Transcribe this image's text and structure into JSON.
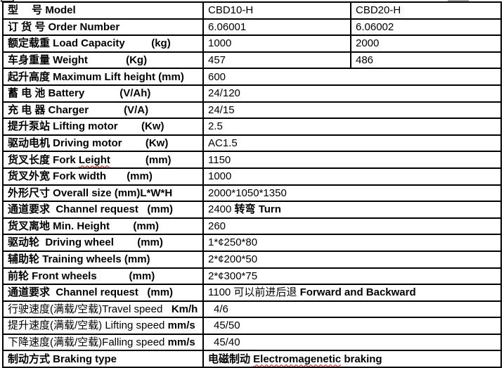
{
  "colors": {
    "border": "#000000",
    "squiggle": "#e60000",
    "artifact_gray": "#a9a9a9",
    "text": "#000000"
  },
  "table": {
    "models": [
      "CBD10-H",
      "CBD20-H"
    ],
    "rows": [
      {
        "name": "model",
        "label": [
          {
            "t": "型　 号 ",
            "b": 1
          },
          {
            "t": "Model",
            "b": 1
          }
        ],
        "cells": [
          [
            {
              "t": "CBD10-H"
            }
          ],
          [
            {
              "t": "CBD20-H"
            }
          ]
        ]
      },
      {
        "name": "order-number",
        "label": [
          {
            "t": "订 货 号 ",
            "b": 1
          },
          {
            "t": "Order Number",
            "b": 1
          }
        ],
        "cells": [
          [
            {
              "t": "6.06001"
            }
          ],
          [
            {
              "t": "6.06002"
            }
          ]
        ]
      },
      {
        "name": "load-capacity",
        "label": [
          {
            "t": "额定载重 ",
            "b": 1
          },
          {
            "t": "Load Capacity",
            "b": 1
          },
          {
            "t": "         ",
            "b": 1
          },
          {
            "t": "(kg)",
            "b": 1
          }
        ],
        "cells": [
          [
            {
              "t": "1000"
            }
          ],
          [
            {
              "t": "2000"
            }
          ]
        ]
      },
      {
        "name": "weight",
        "label": [
          {
            "t": "车身重量 ",
            "b": 1
          },
          {
            "t": "Weight",
            "b": 1
          },
          {
            "t": "             ",
            "b": 1
          },
          {
            "t": "(Kg)",
            "b": 1
          }
        ],
        "cells": [
          [
            {
              "t": "457"
            }
          ],
          [
            {
              "t": "486"
            }
          ]
        ]
      },
      {
        "name": "lift-height",
        "label": [
          {
            "t": "起升高度 ",
            "b": 1
          },
          {
            "t": "Maximum Lift height (mm)",
            "b": 1
          }
        ],
        "cells": [
          [
            {
              "t": "600"
            }
          ]
        ]
      },
      {
        "name": "battery",
        "label": [
          {
            "t": "蓄 电 池 ",
            "b": 1
          },
          {
            "t": "Battery",
            "b": 1
          },
          {
            "t": "            ",
            "b": 1
          },
          {
            "t": "(V/Ah)",
            "b": 1
          }
        ],
        "cells": [
          [
            {
              "t": "24/120"
            }
          ]
        ]
      },
      {
        "name": "charger",
        "label": [
          {
            "t": "充 电 器 ",
            "b": 1
          },
          {
            "t": "Charger",
            "b": 1
          },
          {
            "t": "            ",
            "b": 1
          },
          {
            "t": "(V/A)",
            "b": 1
          }
        ],
        "cells": [
          [
            {
              "t": "24/15"
            }
          ]
        ]
      },
      {
        "name": "lifting-motor",
        "label": [
          {
            "t": "提升泵站 ",
            "b": 1
          },
          {
            "t": "Lifting motor",
            "b": 1
          },
          {
            "t": "        ",
            "b": 1
          },
          {
            "t": "(Kw)",
            "b": 1
          }
        ],
        "cells": [
          [
            {
              "t": "2.5"
            }
          ]
        ]
      },
      {
        "name": "driving-motor",
        "label": [
          {
            "t": "驱动电机 ",
            "b": 1
          },
          {
            "t": "Driving motor",
            "b": 1
          },
          {
            "t": "        ",
            "b": 1
          },
          {
            "t": "(Kw)",
            "b": 1
          }
        ],
        "cells": [
          [
            {
              "t": "AC1.5"
            }
          ]
        ]
      },
      {
        "name": "fork-length",
        "label": [
          {
            "t": "货叉长度 ",
            "b": 1
          },
          {
            "t": "Fork ",
            "b": 1
          },
          {
            "t": "Leight",
            "b": 1,
            "sq": 1
          },
          {
            "t": "            ",
            "b": 1
          },
          {
            "t": "(mm)",
            "b": 1
          }
        ],
        "cells": [
          [
            {
              "t": "1150"
            }
          ]
        ]
      },
      {
        "name": "fork-width",
        "label": [
          {
            "t": "货叉外宽 ",
            "b": 1
          },
          {
            "t": "Fork width",
            "b": 1
          },
          {
            "t": "       ",
            "b": 1
          },
          {
            "t": "(mm)",
            "b": 1
          }
        ],
        "cells": [
          [
            {
              "t": "1000"
            }
          ]
        ]
      },
      {
        "name": "overall-size",
        "label": [
          {
            "t": "外形尺寸 ",
            "b": 1
          },
          {
            "t": "Overall size (mm)L*W*H",
            "b": 1
          }
        ],
        "cells": [
          [
            {
              "t": "2000*1050*1350"
            }
          ]
        ]
      },
      {
        "name": "channel-request-turn",
        "label": [
          {
            "t": "通道要求  ",
            "b": 1
          },
          {
            "t": "Channel request",
            "b": 1
          },
          {
            "t": "   ",
            "b": 1
          },
          {
            "t": "(mm)",
            "b": 1
          }
        ],
        "cells": [
          [
            {
              "t": "2400 "
            },
            {
              "t": "转弯 ",
              "b": 1
            },
            {
              "t": "Turn",
              "b": 1
            }
          ]
        ]
      },
      {
        "name": "min-height",
        "label": [
          {
            "t": "货叉离地 ",
            "b": 1
          },
          {
            "t": "Min. Height",
            "b": 1
          },
          {
            "t": "        ",
            "b": 1
          },
          {
            "t": "(mm)",
            "b": 1
          }
        ],
        "cells": [
          [
            {
              "t": "260"
            }
          ]
        ]
      },
      {
        "name": "driving-wheel",
        "label": [
          {
            "t": "驱动轮  ",
            "b": 1
          },
          {
            "t": "Driving wheel",
            "b": 1
          },
          {
            "t": "        ",
            "b": 1
          },
          {
            "t": "(mm)",
            "b": 1
          }
        ],
        "cells": [
          [
            {
              "t": "1*¢250*80"
            }
          ]
        ]
      },
      {
        "name": "training-wheels",
        "label": [
          {
            "t": "辅助轮 ",
            "b": 1
          },
          {
            "t": "Training wheels (mm)",
            "b": 1
          }
        ],
        "cells": [
          [
            {
              "t": "2*¢200*50"
            }
          ]
        ]
      },
      {
        "name": "front-wheels",
        "label": [
          {
            "t": "前轮 ",
            "b": 1
          },
          {
            "t": "Front wheels",
            "b": 1
          },
          {
            "t": "           ",
            "b": 1
          },
          {
            "t": "(mm)",
            "b": 1
          }
        ],
        "cells": [
          [
            {
              "t": "2*¢300*75"
            }
          ]
        ]
      },
      {
        "name": "channel-request-fb",
        "label": [
          {
            "t": "通道要求  ",
            "b": 1
          },
          {
            "t": "Channel request",
            "b": 1
          },
          {
            "t": "   ",
            "b": 1
          },
          {
            "t": "(mm)",
            "b": 1
          }
        ],
        "cells": [
          [
            {
              "t": "1100 可以前进后退 "
            },
            {
              "t": "Forward and Backward",
              "b": 1
            }
          ]
        ]
      },
      {
        "name": "travel-speed",
        "indent": 1,
        "label": [
          {
            "t": "行驶速度(满载/空载)Travel speed"
          },
          {
            "t": "   "
          },
          {
            "t": "Km/h",
            "b": 1
          }
        ],
        "cells": [
          [
            {
              "t": "4/6"
            }
          ]
        ]
      },
      {
        "name": "lifting-speed",
        "indent": 1,
        "label": [
          {
            "t": "提升速度(满载/空载) Lifting speed "
          },
          {
            "t": "mm/s",
            "b": 1
          }
        ],
        "cells": [
          [
            {
              "t": "45/50"
            }
          ]
        ]
      },
      {
        "name": "falling-speed",
        "indent": 1,
        "label": [
          {
            "t": "下降速度(满载/空载)Falling speed "
          },
          {
            "t": "mm/s",
            "b": 1
          }
        ],
        "cells": [
          [
            {
              "t": "45/40"
            }
          ]
        ]
      },
      {
        "name": "braking-type",
        "label": [
          {
            "t": "制动方式 ",
            "b": 1
          },
          {
            "t": "Braking type",
            "b": 1
          }
        ],
        "cells": [
          [
            {
              "t": "电磁制动 ",
              "b": 1
            },
            {
              "t": "Electromagenetic",
              "b": 1,
              "sq": 1
            },
            {
              "t": " braking",
              "b": 1
            }
          ]
        ]
      }
    ]
  }
}
